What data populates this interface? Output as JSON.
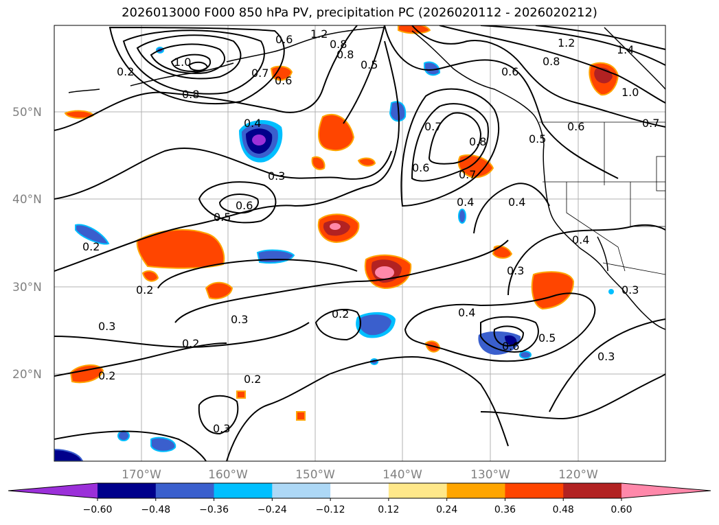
{
  "title": "2026013000 F000 850 hPa PV, precipitation PC (2026020112 - 2026020212)",
  "map": {
    "lat_labels": [
      "50°N",
      "40°N",
      "30°N",
      "20°N"
    ],
    "lon_labels": [
      "170°W",
      "160°W",
      "150°W",
      "140°W",
      "130°W",
      "120°W"
    ],
    "contour_color": "#000000",
    "coastline_color": "#000000",
    "grid_color": "#b0b0b0",
    "contour_labels": [
      "1.2",
      "1.4",
      "1.0",
      "0.8",
      "0.2",
      "0.5",
      "0.6",
      "0.7",
      "0.8",
      "1.0",
      "1.2",
      "0.8",
      "0.6",
      "0.7",
      "0.4",
      "0.3",
      "0.6",
      "0.5",
      "0.6",
      "0.7",
      "0.8",
      "0.5",
      "0.6",
      "0.4",
      "0.4",
      "0.4",
      "0.2",
      "0.2",
      "0.3",
      "0.3",
      "0.2",
      "0.2",
      "0.4",
      "0.3",
      "0.5",
      "0.6",
      "0.3",
      "0.2",
      "0.2",
      "0.3",
      "0.6",
      "0.7",
      "0.3",
      "0.8"
    ]
  },
  "colorbar": {
    "tick_labels": [
      "−0.60",
      "−0.48",
      "−0.36",
      "−0.24",
      "−0.12",
      "0.12",
      "0.24",
      "0.36",
      "0.48",
      "0.60"
    ],
    "colors": [
      "#9b30d9",
      "#00008b",
      "#3a5fcd",
      "#00bfff",
      "#add8f6",
      "#ffffff",
      "#ffe88a",
      "#ffa500",
      "#ff4500",
      "#b22222",
      "#ff88aa"
    ]
  }
}
